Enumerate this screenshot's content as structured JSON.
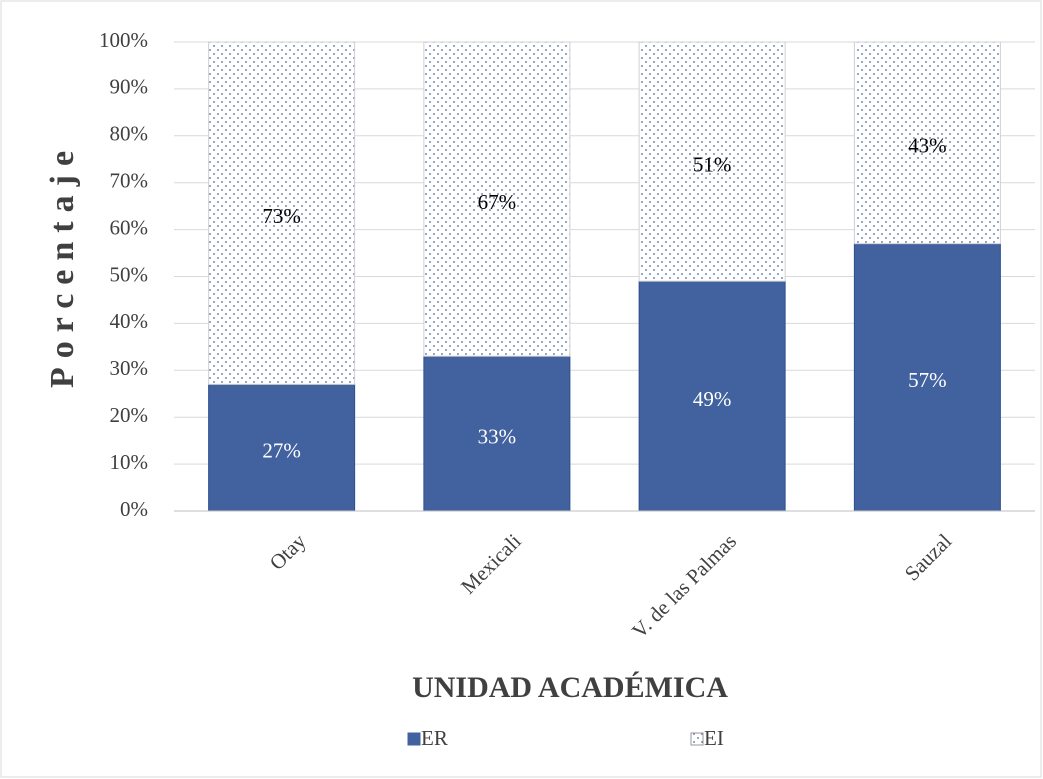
{
  "chart_data": {
    "type": "stacked_bar",
    "categories": [
      "Otay",
      "Mexicali",
      "V. de las Palmas",
      "Sauzal"
    ],
    "series": [
      {
        "name": "ER",
        "color": "#41619f",
        "values": [
          27,
          33,
          49,
          57
        ],
        "value_labels": [
          "27%",
          "33%",
          "49%",
          "57%"
        ]
      },
      {
        "name": "EI",
        "color": "#4a6aa8",
        "pattern": "dots",
        "values": [
          73,
          67,
          51,
          43
        ],
        "value_labels": [
          "73%",
          "67%",
          "51%",
          "43%"
        ]
      }
    ],
    "ylim": [
      0,
      100
    ],
    "yticks": [
      {
        "value": 0,
        "label": "0%"
      },
      {
        "value": 10,
        "label": "10%"
      },
      {
        "value": 20,
        "label": "20%"
      },
      {
        "value": 30,
        "label": "30%"
      },
      {
        "value": 40,
        "label": "40%"
      },
      {
        "value": 50,
        "label": "50%"
      },
      {
        "value": 60,
        "label": "60%"
      },
      {
        "value": 70,
        "label": "70%"
      },
      {
        "value": 80,
        "label": "80%"
      },
      {
        "value": 90,
        "label": "90%"
      },
      {
        "value": 100,
        "label": "100%"
      }
    ],
    "y_label": "Porcentaje",
    "x_label": "UNIDAD ACADÉMICA",
    "grid": true,
    "legend": "bottom"
  }
}
